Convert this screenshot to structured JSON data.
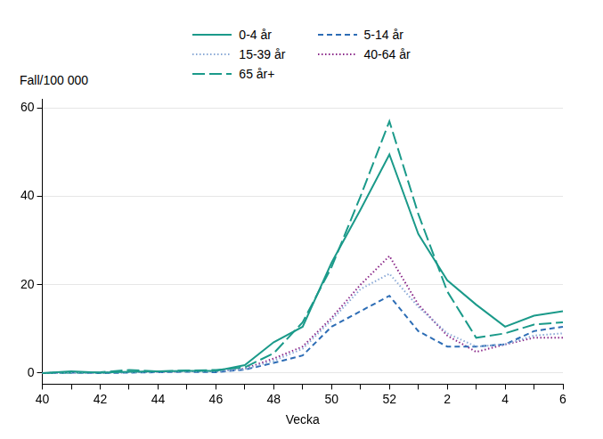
{
  "chart_data": {
    "type": "line",
    "y_label": "Fall/100 000",
    "x_label": "Vecka",
    "categories": [
      "40",
      null,
      "42",
      null,
      "44",
      null,
      "46",
      null,
      "48",
      null,
      "50",
      null,
      "52",
      null,
      "2",
      null,
      "4",
      null,
      "6"
    ],
    "series": [
      {
        "name": "0-4 år",
        "color": "#1b9a8a",
        "line_style": "solid",
        "values": [
          0,
          0.4,
          0.1,
          0.3,
          0.4,
          0.5,
          0.5,
          1.8,
          7,
          10.5,
          25,
          37,
          49.5,
          31.5,
          21,
          15.5,
          10.5,
          13,
          14
        ]
      },
      {
        "name": "15-39 år",
        "color": "#8aa9d6",
        "line_style": "dotted",
        "values": [
          0,
          0.1,
          0.1,
          0.2,
          0.3,
          0.4,
          0.4,
          0.9,
          2.8,
          5.5,
          12,
          19,
          22.5,
          15,
          9,
          6,
          6.5,
          8.5,
          9
        ]
      },
      {
        "name": "65 år+",
        "color": "#1b9a8a",
        "line_style": "long_dashed",
        "values": [
          0,
          0.1,
          0.2,
          0.7,
          0.4,
          0.6,
          0.7,
          1.3,
          4.5,
          11.5,
          24,
          40,
          57,
          36,
          18.5,
          8,
          9,
          11,
          11.5
        ]
      },
      {
        "name": "5-14 år",
        "color": "#2d6db5",
        "line_style": "dashed",
        "values": [
          0,
          0.1,
          0,
          0.1,
          0.2,
          0.3,
          0.2,
          0.8,
          2.3,
          4,
          10.5,
          14,
          17.5,
          9.5,
          6,
          6,
          6.5,
          9.5,
          10.5
        ]
      },
      {
        "name": "40-64 år",
        "color": "#8b2a8a",
        "line_style": "dotted",
        "values": [
          0,
          0.1,
          0.1,
          0.2,
          0.3,
          0.4,
          0.4,
          1,
          3.3,
          6,
          12.5,
          20,
          26.5,
          15.5,
          8.5,
          4.8,
          6.5,
          8,
          8
        ]
      }
    ],
    "ylim": [
      -2.5,
      62
    ],
    "yticks": [
      0,
      20,
      40,
      60
    ],
    "grid": true,
    "legend": "top"
  }
}
